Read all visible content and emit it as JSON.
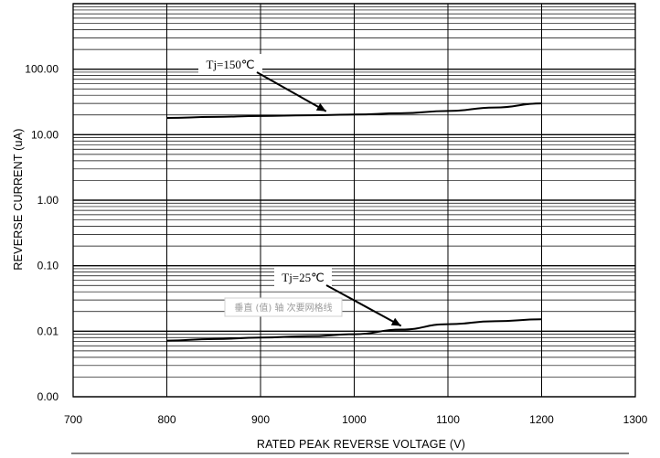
{
  "chart_data": {
    "type": "line",
    "title": "",
    "xlabel": "RATED PEAK REVERSE VOLTAGE (V)",
    "ylabel": "REVERSE CURRENT (uA)",
    "xlim": [
      700,
      1300
    ],
    "x_ticks": [
      700,
      800,
      900,
      1000,
      1100,
      1200,
      1300
    ],
    "x_tick_labels": [
      "700",
      "800",
      "900",
      "1000",
      "1100",
      "1200",
      "1300"
    ],
    "y_scale": "log",
    "ylim": [
      0.001,
      1000
    ],
    "y_ticks": [
      0.001,
      0.01,
      0.1,
      1,
      10,
      100
    ],
    "y_tick_labels": [
      "0.00",
      "0.01",
      "0.10",
      "1.00",
      "10.00",
      "100.00"
    ],
    "grid": true,
    "series": [
      {
        "name": "Tj=150℃",
        "x": [
          800,
          850,
          900,
          950,
          1000,
          1050,
          1100,
          1150,
          1200
        ],
        "y": [
          18,
          18.7,
          19.3,
          19.8,
          20.3,
          21.2,
          23,
          26,
          30
        ]
      },
      {
        "name": "Tj=25℃",
        "x": [
          800,
          850,
          900,
          950,
          1000,
          1050,
          1100,
          1150,
          1200
        ],
        "y": [
          0.0072,
          0.0076,
          0.008,
          0.0084,
          0.009,
          0.0106,
          0.0128,
          0.0142,
          0.0152
        ]
      }
    ],
    "annotations": [
      {
        "text": "Tj=150℃",
        "target_x": 970,
        "target_y": 20
      },
      {
        "text": "Tj=25℃",
        "target_x": 1050,
        "target_y": 0.0106
      }
    ],
    "watermark": "垂直 (值) 轴 次要网格线"
  }
}
